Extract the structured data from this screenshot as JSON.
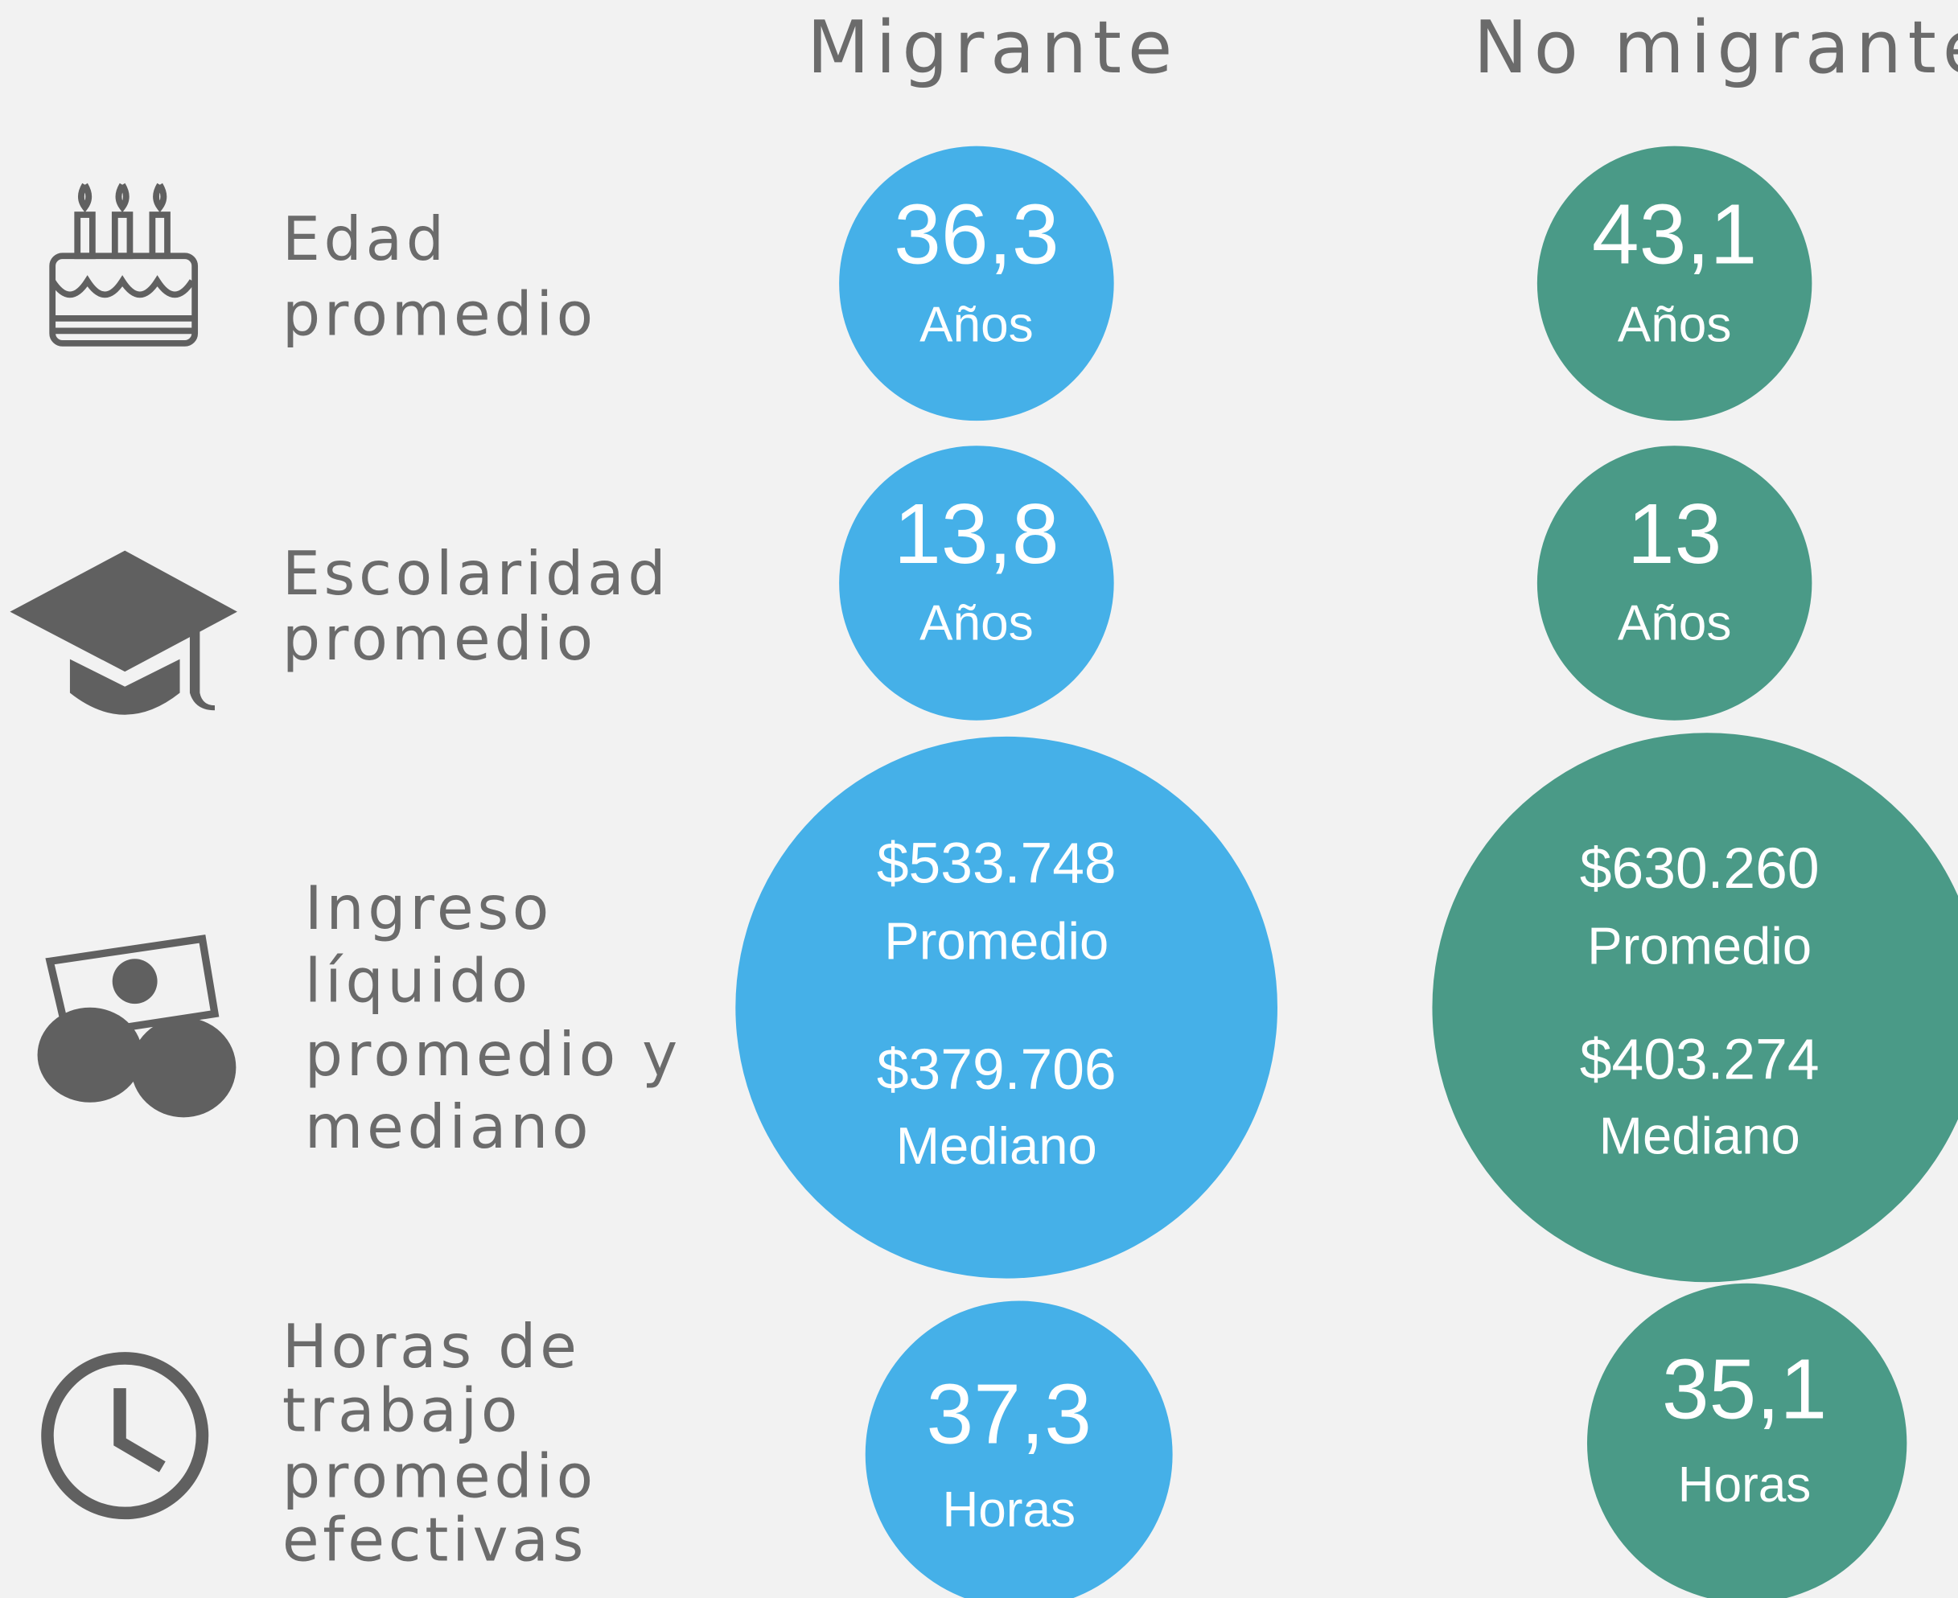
{
  "columns": [
    "Migrante",
    "No migrante"
  ],
  "rows": [
    {
      "label": [
        "Edad",
        "promedio"
      ],
      "migrante": [
        "36,3",
        "Años"
      ],
      "no_migrante": [
        "43,1",
        "Años"
      ]
    },
    {
      "label": [
        "Escolaridad",
        "promedio"
      ],
      "migrante": [
        "13,8",
        "Años"
      ],
      "no_migrante": [
        "13",
        "Años"
      ]
    },
    {
      "label": [
        "Ingreso",
        "líquido",
        "promedio y",
        "mediano"
      ],
      "migrante": [
        "$533.748",
        "Promedio",
        "$379.706",
        "Mediano"
      ],
      "no_migrante": [
        "$630.260",
        "Promedio",
        "$403.274",
        "Mediano"
      ]
    },
    {
      "label": [
        "Horas de",
        "trabajo",
        "promedio",
        "efectivas"
      ],
      "migrante": [
        "37,3",
        "Horas"
      ],
      "no_migrante": [
        "35,1",
        "Horas"
      ]
    }
  ]
}
